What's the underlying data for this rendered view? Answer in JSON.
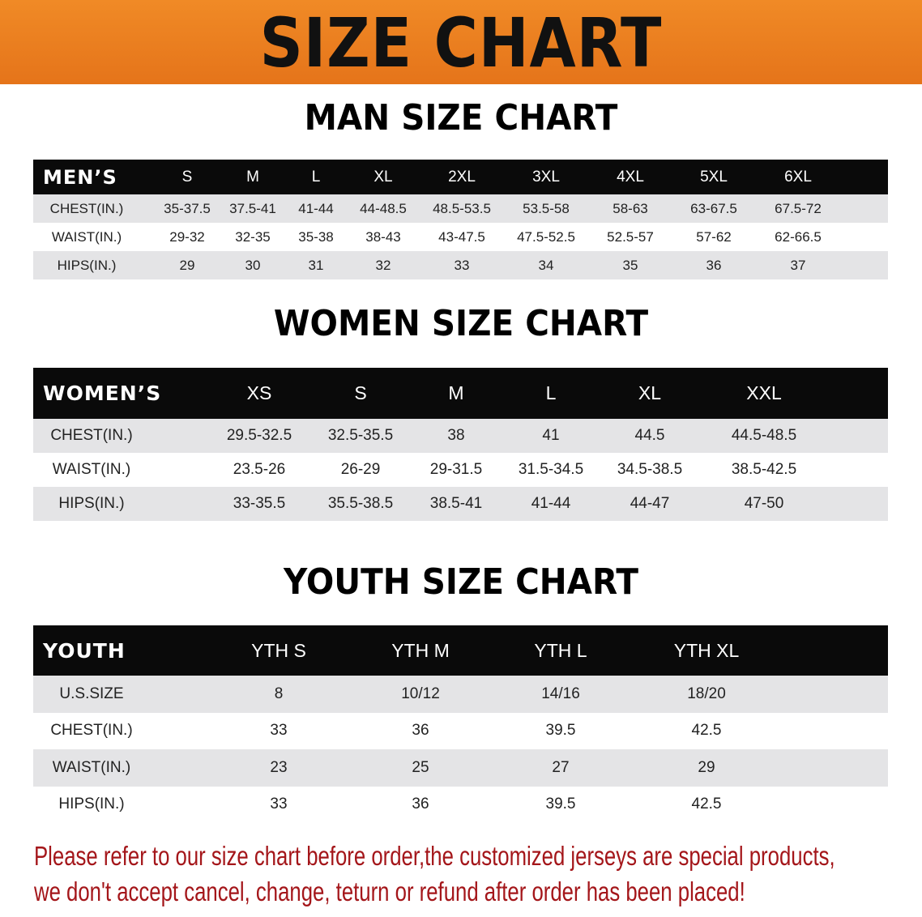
{
  "banner": {
    "title": "SIZE CHART",
    "color": "#e97b1f"
  },
  "men": {
    "title": "MAN SIZE CHART",
    "header": "MEN’S",
    "columns": [
      "S",
      "M",
      "L",
      "XL",
      "2XL",
      "3XL",
      "4XL",
      "5XL",
      "6XL"
    ],
    "rows": [
      {
        "label": "CHEST(IN.)",
        "values": [
          "35-37.5",
          "37.5-41",
          "41-44",
          "44-48.5",
          "48.5-53.5",
          "53.5-58",
          "58-63",
          "63-67.5",
          "67.5-72"
        ]
      },
      {
        "label": "WAIST(IN.)",
        "values": [
          "29-32",
          "32-35",
          "35-38",
          "38-43",
          "43-47.5",
          "47.5-52.5",
          "52.5-57",
          "57-62",
          "62-66.5"
        ]
      },
      {
        "label": "HIPS(IN.)",
        "values": [
          "29",
          "30",
          "31",
          "32",
          "33",
          "34",
          "35",
          "36",
          "37"
        ]
      }
    ]
  },
  "women": {
    "title": "WOMEN SIZE CHART",
    "header": "WOMEN’S",
    "columns": [
      "XS",
      "S",
      "M",
      "L",
      "XL",
      "XXL"
    ],
    "rows": [
      {
        "label": "CHEST(IN.)",
        "values": [
          "29.5-32.5",
          "32.5-35.5",
          "38",
          "41",
          "44.5",
          "44.5-48.5"
        ]
      },
      {
        "label": "WAIST(IN.)",
        "values": [
          "23.5-26",
          "26-29",
          "29-31.5",
          "31.5-34.5",
          "34.5-38.5",
          "38.5-42.5"
        ]
      },
      {
        "label": "HIPS(IN.)",
        "values": [
          "33-35.5",
          "35.5-38.5",
          "38.5-41",
          "41-44",
          "44-47",
          "47-50"
        ]
      }
    ]
  },
  "youth": {
    "title": "YOUTH SIZE CHART",
    "header": "YOUTH",
    "columns": [
      "YTH S",
      "YTH M",
      "YTH L",
      "YTH XL"
    ],
    "rows": [
      {
        "label": "U.S.SIZE",
        "values": [
          "8",
          "10/12",
          "14/16",
          "18/20"
        ]
      },
      {
        "label": "CHEST(IN.)",
        "values": [
          "33",
          "36",
          "39.5",
          "42.5"
        ]
      },
      {
        "label": "WAIST(IN.)",
        "values": [
          "23",
          "25",
          "27",
          "29"
        ]
      },
      {
        "label": "HIPS(IN.)",
        "values": [
          "33",
          "36",
          "39.5",
          "42.5"
        ]
      }
    ]
  },
  "notice": {
    "line1": "Please refer to our size chart before order,the customized jerseys are special products,",
    "line2": "we don't accept cancel, change, teturn or refund after order has been placed!",
    "color": "#a4161a"
  }
}
